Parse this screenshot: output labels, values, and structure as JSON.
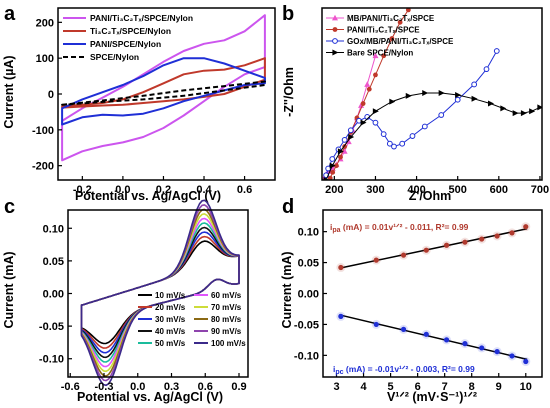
{
  "colors": {
    "purple": "#cc55ee",
    "brown": "#c0392b",
    "blue": "#1f2fd6",
    "black": "#000000",
    "pink": "#ee55cc",
    "linered": "#b03a2e"
  },
  "chart_data": [
    {
      "panel": "a",
      "type": "line",
      "xlabel": "Potential vs. Ag/AgCl (V)",
      "ylabel": "Current (µA)",
      "xlim": [
        -0.32,
        0.75
      ],
      "ylim": [
        -240,
        240
      ],
      "xticks": [
        -0.2,
        0.0,
        0.2,
        0.4,
        0.6
      ],
      "yticks": [
        -200,
        -100,
        0,
        100,
        200
      ],
      "legend_position": "top-left",
      "series": [
        {
          "name": "PANI/Ti₃C₂Tₓ/SPCE/Nylon",
          "color": "#cc55ee",
          "style": "solid",
          "x": [
            -0.3,
            -0.2,
            -0.1,
            0.0,
            0.1,
            0.2,
            0.3,
            0.4,
            0.5,
            0.6,
            0.7,
            0.7,
            0.6,
            0.5,
            0.4,
            0.3,
            0.2,
            0.1,
            0.0,
            -0.1,
            -0.2,
            -0.3
          ],
          "y": [
            -75,
            -40,
            -10,
            20,
            55,
            90,
            120,
            140,
            150,
            175,
            220,
            75,
            55,
            20,
            -20,
            -60,
            -95,
            -120,
            -135,
            -145,
            -160,
            -185
          ]
        },
        {
          "name": "Ti₃C₂Tₓ/SPCE/Nylon",
          "color": "#c0392b",
          "style": "solid",
          "x": [
            -0.3,
            -0.2,
            -0.1,
            0.0,
            0.1,
            0.2,
            0.3,
            0.4,
            0.5,
            0.6,
            0.7,
            0.7,
            0.6,
            0.5,
            0.4,
            0.3,
            0.2,
            0.1,
            0.0,
            -0.1,
            -0.2,
            -0.3
          ],
          "y": [
            -35,
            -30,
            -25,
            -15,
            5,
            30,
            55,
            65,
            68,
            80,
            100,
            40,
            20,
            0,
            -8,
            -15,
            -20,
            -25,
            -30,
            -32,
            -35,
            -38
          ]
        },
        {
          "name": "PANI/SPCE/Nylon",
          "color": "#1f2fd6",
          "style": "solid",
          "x": [
            -0.3,
            -0.2,
            -0.1,
            0.0,
            0.1,
            0.2,
            0.3,
            0.4,
            0.5,
            0.6,
            0.7,
            0.7,
            0.6,
            0.5,
            0.4,
            0.3,
            0.2,
            0.1,
            0.0,
            -0.1,
            -0.2,
            -0.3
          ],
          "y": [
            -40,
            -15,
            5,
            25,
            50,
            80,
            100,
            100,
            85,
            65,
            45,
            30,
            25,
            10,
            -5,
            -20,
            -40,
            -55,
            -60,
            -58,
            -65,
            -85
          ]
        },
        {
          "name": "SPCE/Nylon",
          "color": "#000000",
          "style": "dashed",
          "x": [
            -0.3,
            -0.1,
            0.1,
            0.3,
            0.5,
            0.7,
            0.7,
            0.5,
            0.3,
            0.1,
            -0.1,
            -0.3
          ],
          "y": [
            -30,
            -18,
            -5,
            10,
            22,
            35,
            25,
            10,
            -5,
            -15,
            -22,
            -30
          ]
        }
      ]
    },
    {
      "panel": "b",
      "type": "scatter",
      "xlabel": "Z'/Ohm",
      "ylabel": "-Z''/Ohm",
      "xlim": [
        170,
        705
      ],
      "ylim": [
        0,
        180
      ],
      "xticks": [
        200,
        300,
        400,
        500,
        600,
        700
      ],
      "legend_position": "top-left",
      "series": [
        {
          "name": "MB/PANI/Ti₃C₂Tₓ/SPCE",
          "color": "#ee55cc",
          "marker": "triangle",
          "x": [
            175,
            180,
            188,
            196,
            205,
            215,
            225,
            235,
            245,
            255,
            265,
            280,
            300
          ],
          "y": [
            2,
            6,
            9,
            12,
            16,
            22,
            30,
            40,
            52,
            65,
            78,
            100,
            130
          ]
        },
        {
          "name": "PANI/Ti₃C₂Tₓ/SPCE",
          "color": "#c0392b",
          "marker": "circle",
          "x": [
            190,
            196,
            205,
            215,
            225,
            240,
            255,
            270,
            285,
            300,
            320,
            340,
            360,
            380
          ],
          "y": [
            2,
            8,
            15,
            24,
            35,
            50,
            65,
            80,
            95,
            110,
            130,
            148,
            165,
            178
          ]
        },
        {
          "name": "GOx/MB/PANI/Ti₃C₂Tₓ/SPCE",
          "color": "#1f2fd6",
          "marker": "circle-open",
          "x": [
            180,
            185,
            195,
            210,
            225,
            240,
            260,
            280,
            300,
            320,
            335,
            345,
            365,
            390,
            420,
            460,
            500,
            540,
            570,
            595
          ],
          "y": [
            5,
            12,
            22,
            32,
            42,
            52,
            62,
            66,
            60,
            48,
            38,
            35,
            38,
            46,
            56,
            68,
            84,
            100,
            116,
            135
          ]
        },
        {
          "name": "Bare SPCE/Nylon",
          "color": "#000000",
          "marker": "triangle-right",
          "x": [
            180,
            195,
            215,
            240,
            270,
            300,
            340,
            380,
            420,
            460,
            500,
            540,
            580,
            610,
            640,
            660,
            680,
            700
          ],
          "y": [
            0,
            15,
            30,
            45,
            60,
            72,
            82,
            88,
            91,
            91,
            89,
            85,
            80,
            75,
            70,
            70,
            72,
            76
          ]
        }
      ]
    },
    {
      "panel": "c",
      "type": "line",
      "xlabel": "Potential vs. Ag/AgCl (V)",
      "ylabel": "Current (mA)",
      "xlim": [
        -0.62,
        0.98
      ],
      "ylim": [
        -0.128,
        0.128
      ],
      "xticks": [
        -0.6,
        -0.3,
        0.0,
        0.3,
        0.6,
        0.9
      ],
      "yticks": [
        -0.1,
        -0.05,
        0.0,
        0.05,
        0.1
      ],
      "legend_position": "bottom-right",
      "series": [
        {
          "name": "10 mV/s",
          "color": "#000000",
          "peak": 0.04
        },
        {
          "name": "20 mV/s",
          "color": "#c0392b",
          "peak": 0.047
        },
        {
          "name": "30 mV/s",
          "color": "#1f2fd6",
          "peak": 0.054
        },
        {
          "name": "40 mV/s",
          "color": "#111111",
          "peak": 0.061
        },
        {
          "name": "50 mV/s",
          "color": "#1abc9c",
          "peak": 0.068
        },
        {
          "name": "60 mV/s",
          "color": "#e056fd",
          "peak": 0.075
        },
        {
          "name": "70 mV/s",
          "color": "#cddc39",
          "peak": 0.082
        },
        {
          "name": "80 mV/s",
          "color": "#8b6914",
          "peak": 0.089
        },
        {
          "name": "90 mV/s",
          "color": "#8e44ad",
          "peak": 0.096
        },
        {
          "name": "100 mV/s",
          "color": "#3b2a8a",
          "peak": 0.103
        }
      ]
    },
    {
      "panel": "d",
      "type": "scatter",
      "xlabel": "V¹ᐟ² (mV·S⁻¹)¹ᐟ²",
      "ylabel": "Current (mA)",
      "xlim": [
        2.5,
        10.6
      ],
      "ylim": [
        -0.135,
        0.135
      ],
      "xticks": [
        3,
        4,
        5,
        6,
        7,
        8,
        9,
        10
      ],
      "yticks": [
        -0.1,
        -0.05,
        0.0,
        0.05,
        0.1
      ],
      "series": [
        {
          "name": "ipa",
          "color": "#b03a2e",
          "x": [
            3.16,
            4.47,
            5.48,
            6.32,
            7.07,
            7.75,
            8.37,
            8.94,
            9.49,
            10.0
          ],
          "y": [
            0.042,
            0.054,
            0.062,
            0.07,
            0.078,
            0.083,
            0.088,
            0.093,
            0.098,
            0.108
          ]
        },
        {
          "name": "ipc",
          "color": "#1f2fd6",
          "x": [
            3.16,
            4.47,
            5.48,
            6.32,
            7.07,
            7.75,
            8.37,
            8.94,
            9.49,
            10.0
          ],
          "y": [
            -0.037,
            -0.05,
            -0.058,
            -0.066,
            -0.075,
            -0.081,
            -0.088,
            -0.094,
            -0.101,
            -0.11
          ]
        }
      ],
      "annotations": {
        "ipa_prefix": "i",
        "ipa_sub": "pa",
        "ipa_eq": " (mA) = 0.01v¹ᐟ² - 0.011, R²= 0.99",
        "ipc_prefix": "i",
        "ipc_sub": "pc",
        "ipc_eq": " (mA) = -0.01v¹ᐟ² - 0.003, R²= 0.99"
      }
    }
  ]
}
